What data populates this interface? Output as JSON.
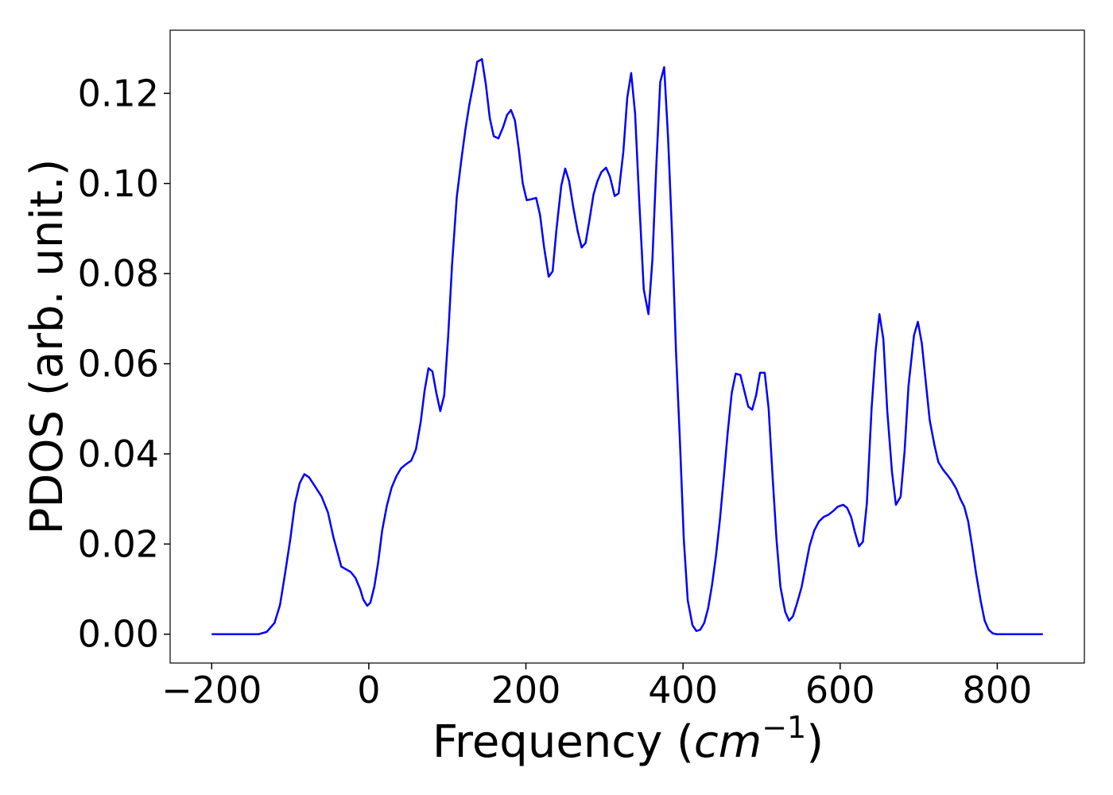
{
  "chart_data": {
    "type": "line",
    "xlabel": [
      "Frequency (",
      "cm",
      "−1",
      ")"
    ],
    "ylabel": "PDOS (arb. unit.)",
    "xlim": [
      -252.9,
      910.9
    ],
    "ylim": [
      -0.0064,
      0.134
    ],
    "xticks": [
      {
        "value": -200,
        "label": "−200"
      },
      0,
      200,
      400,
      600,
      800
    ],
    "yticks": [
      {
        "value": 0,
        "label": "0.00"
      },
      {
        "value": 0.02,
        "label": "0.02"
      },
      {
        "value": 0.04,
        "label": "0.04"
      },
      {
        "value": 0.06,
        "label": "0.06"
      },
      {
        "value": 0.08,
        "label": "0.08"
      },
      {
        "value": 0.1,
        "label": "0.10"
      },
      {
        "value": 0.12,
        "label": "0.12"
      }
    ],
    "x": [
      -200,
      -140,
      -130,
      -120,
      -113,
      -107,
      -100,
      -94,
      -88,
      -82,
      -76,
      -70,
      -60,
      -52,
      -45,
      -35,
      -23,
      -17,
      -11,
      -7,
      -2,
      2,
      7,
      12,
      17,
      23,
      29,
      35,
      41,
      48,
      54,
      60,
      66,
      71,
      76,
      81,
      86,
      91,
      96,
      101,
      106,
      112,
      118,
      123,
      128,
      133,
      138,
      144,
      149,
      154,
      159,
      165,
      171,
      176,
      181,
      186,
      191,
      196,
      201,
      207,
      213,
      218,
      223,
      229,
      234,
      239,
      245,
      250,
      255,
      260,
      266,
      271,
      276,
      281,
      286,
      291,
      296,
      302,
      307,
      313,
      318,
      324,
      329,
      334,
      339,
      344,
      350,
      356,
      361,
      366,
      371,
      376,
      381,
      386,
      391,
      396,
      401,
      406,
      412,
      417,
      422,
      427,
      432,
      437,
      442,
      447,
      452,
      457,
      462,
      467,
      473,
      478,
      483,
      488,
      493,
      498,
      504,
      509,
      514,
      519,
      524,
      530,
      535,
      540,
      545,
      551,
      556,
      561,
      567,
      573,
      579,
      585,
      591,
      597,
      604,
      609,
      614,
      619,
      624,
      629,
      634,
      640,
      645,
      650,
      655,
      660,
      666,
      671,
      677,
      682,
      687,
      694,
      699,
      704,
      709,
      714,
      720,
      725,
      731,
      737,
      742,
      748,
      753,
      758,
      763,
      768,
      773,
      779,
      784,
      789,
      794,
      799,
      858
    ],
    "series": [
      {
        "color": "#0000ff",
        "values": [
          0,
          0,
          0.0005,
          0.0025,
          0.0065,
          0.013,
          0.021,
          0.029,
          0.0335,
          0.0355,
          0.0348,
          0.0332,
          0.0305,
          0.027,
          0.0215,
          0.015,
          0.0138,
          0.0125,
          0.01,
          0.0077,
          0.0063,
          0.007,
          0.0105,
          0.016,
          0.023,
          0.0285,
          0.0325,
          0.035,
          0.0368,
          0.0378,
          0.0385,
          0.041,
          0.047,
          0.054,
          0.059,
          0.0583,
          0.0535,
          0.0495,
          0.053,
          0.066,
          0.082,
          0.097,
          0.1055,
          0.112,
          0.1175,
          0.122,
          0.127,
          0.1276,
          0.122,
          0.1145,
          0.1105,
          0.11,
          0.1125,
          0.1152,
          0.1163,
          0.114,
          0.1075,
          0.1,
          0.0963,
          0.0965,
          0.0968,
          0.093,
          0.086,
          0.0793,
          0.0805,
          0.09,
          0.0995,
          0.1033,
          0.1005,
          0.095,
          0.0893,
          0.0858,
          0.0868,
          0.092,
          0.0975,
          0.1005,
          0.1025,
          0.1035,
          0.1015,
          0.0972,
          0.0978,
          0.107,
          0.119,
          0.1245,
          0.1155,
          0.097,
          0.0765,
          0.071,
          0.083,
          0.104,
          0.1225,
          0.1258,
          0.11,
          0.089,
          0.063,
          0.043,
          0.021,
          0.0075,
          0.002,
          0.0007,
          0.001,
          0.0025,
          0.0058,
          0.011,
          0.0175,
          0.0255,
          0.035,
          0.045,
          0.0535,
          0.0578,
          0.0575,
          0.054,
          0.0505,
          0.0498,
          0.053,
          0.058,
          0.058,
          0.05,
          0.035,
          0.021,
          0.0105,
          0.005,
          0.003,
          0.004,
          0.0068,
          0.0105,
          0.015,
          0.0195,
          0.023,
          0.025,
          0.026,
          0.0265,
          0.0273,
          0.0283,
          0.0287,
          0.028,
          0.026,
          0.0225,
          0.0195,
          0.0205,
          0.029,
          0.05,
          0.0625,
          0.071,
          0.0655,
          0.0495,
          0.036,
          0.0287,
          0.0305,
          0.0405,
          0.055,
          0.0663,
          0.0693,
          0.0645,
          0.056,
          0.0475,
          0.042,
          0.0382,
          0.0365,
          0.0352,
          0.034,
          0.0322,
          0.03,
          0.0283,
          0.025,
          0.0195,
          0.0135,
          0.0073,
          0.003,
          0.001,
          0.0002,
          0,
          0
        ]
      }
    ]
  }
}
